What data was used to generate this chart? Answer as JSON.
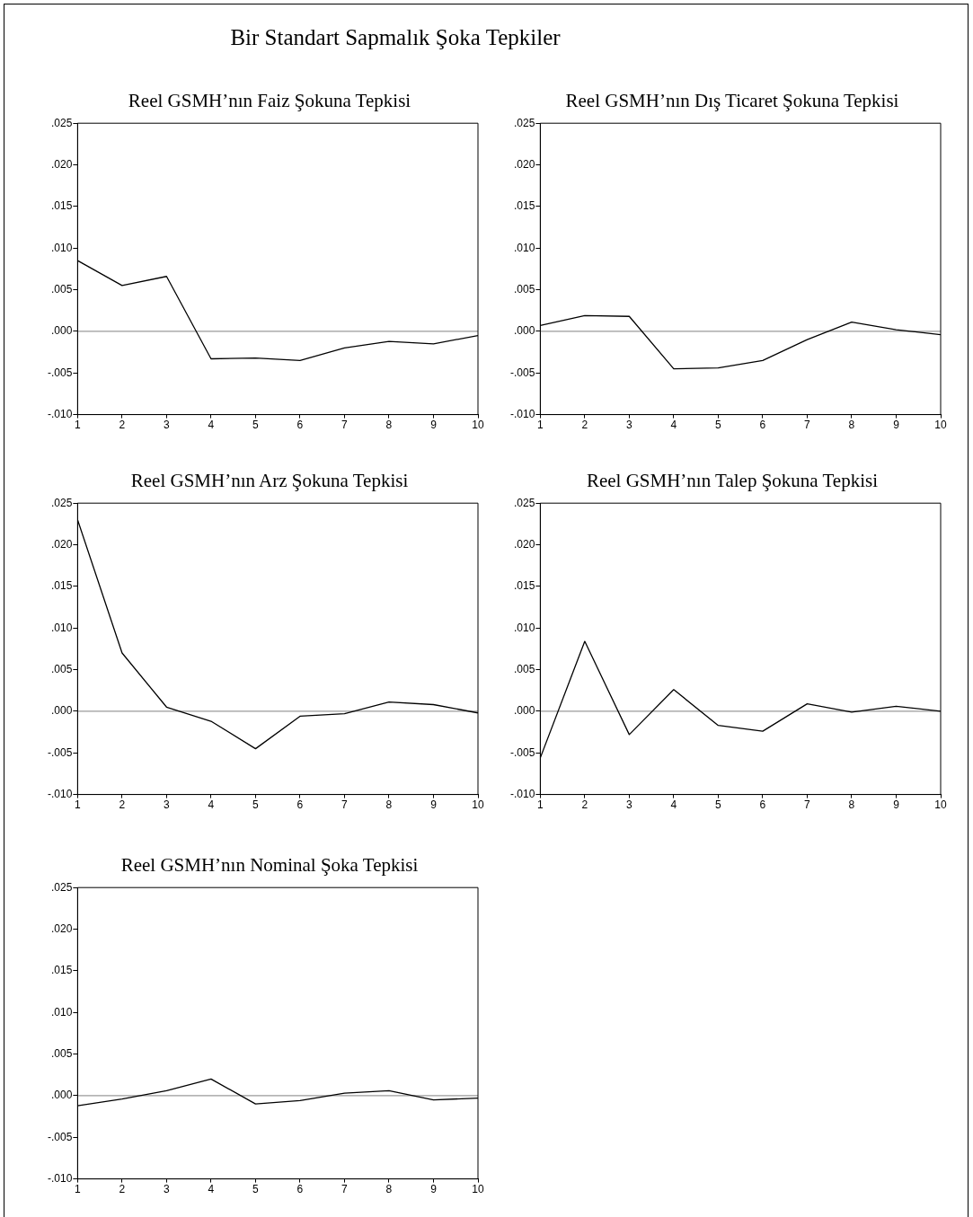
{
  "chart_data": [
    {
      "type": "other",
      "title": "Bir Standart Sapmalık Şoka Tepkiler"
    },
    {
      "type": "line",
      "title": "Reel GSMH’nın Faiz Şokuna Tepkisi",
      "x": [
        1,
        2,
        3,
        4,
        5,
        6,
        7,
        8,
        9,
        10
      ],
      "color": "#000000",
      "values": [
        0.0085,
        0.0055,
        0.0066,
        -0.0033,
        -0.0032,
        -0.0035,
        -0.002,
        -0.0012,
        -0.0015,
        -0.0005
      ],
      "xlim": [
        1,
        10
      ],
      "xticks": [
        1,
        2,
        3,
        4,
        5,
        6,
        7,
        8,
        9,
        10
      ],
      "ylim": [
        -0.01,
        0.025
      ],
      "yticks": [
        {
          "value": -0.01,
          "label": "-.010"
        },
        {
          "value": -0.005,
          "label": "-.005"
        },
        {
          "value": 0,
          "label": ".000"
        },
        {
          "value": 0.005,
          "label": ".005"
        },
        {
          "value": 0.01,
          "label": ".010"
        },
        {
          "value": 0.015,
          "label": ".015"
        },
        {
          "value": 0.02,
          "label": ".020"
        },
        {
          "value": 0.025,
          "label": ".025"
        }
      ],
      "ref_lines": [
        {
          "axis": "y",
          "value": 0,
          "color": "#808080"
        }
      ]
    },
    {
      "type": "line",
      "title": "Reel GSMH’nın Dış Ticaret Şokuna Tepkisi",
      "x": [
        1,
        2,
        3,
        4,
        5,
        6,
        7,
        8,
        9,
        10
      ],
      "color": "#000000",
      "values": [
        0.0007,
        0.0019,
        0.0018,
        -0.0045,
        -0.0044,
        -0.0035,
        -0.001,
        0.0011,
        0.0002,
        -0.0004
      ],
      "xlim": [
        1,
        10
      ],
      "xticks": [
        1,
        2,
        3,
        4,
        5,
        6,
        7,
        8,
        9,
        10
      ],
      "ylim": [
        -0.01,
        0.025
      ],
      "yticks": [
        {
          "value": -0.01,
          "label": "-.010"
        },
        {
          "value": -0.005,
          "label": "-.005"
        },
        {
          "value": 0,
          "label": ".000"
        },
        {
          "value": 0.005,
          "label": ".005"
        },
        {
          "value": 0.01,
          "label": ".010"
        },
        {
          "value": 0.015,
          "label": ".015"
        },
        {
          "value": 0.02,
          "label": ".020"
        },
        {
          "value": 0.025,
          "label": ".025"
        }
      ],
      "ref_lines": [
        {
          "axis": "y",
          "value": 0,
          "color": "#808080"
        }
      ]
    },
    {
      "type": "line",
      "title": "Reel GSMH’nın Arz Şokuna Tepkisi",
      "x": [
        1,
        2,
        3,
        4,
        5,
        6,
        7,
        8,
        9,
        10
      ],
      "color": "#000000",
      "values": [
        0.023,
        0.007,
        0.0005,
        -0.0012,
        -0.0045,
        -0.0006,
        -0.0003,
        0.0011,
        0.0008,
        -0.0002
      ],
      "xlim": [
        1,
        10
      ],
      "xticks": [
        1,
        2,
        3,
        4,
        5,
        6,
        7,
        8,
        9,
        10
      ],
      "ylim": [
        -0.01,
        0.025
      ],
      "yticks": [
        {
          "value": -0.01,
          "label": "-.010"
        },
        {
          "value": -0.005,
          "label": "-.005"
        },
        {
          "value": 0,
          "label": ".000"
        },
        {
          "value": 0.005,
          "label": ".005"
        },
        {
          "value": 0.01,
          "label": ".010"
        },
        {
          "value": 0.015,
          "label": ".015"
        },
        {
          "value": 0.02,
          "label": ".020"
        },
        {
          "value": 0.025,
          "label": ".025"
        }
      ],
      "ref_lines": [
        {
          "axis": "y",
          "value": 0,
          "color": "#808080"
        }
      ]
    },
    {
      "type": "line",
      "title": "Reel GSMH’nın Talep Şokuna Tepkisi",
      "x": [
        1,
        2,
        3,
        4,
        5,
        6,
        7,
        8,
        9,
        10
      ],
      "color": "#000000",
      "values": [
        -0.0056,
        0.0084,
        -0.0028,
        0.0026,
        -0.0017,
        -0.0024,
        0.0009,
        -0.0001,
        0.0006,
        0.0
      ],
      "xlim": [
        1,
        10
      ],
      "xticks": [
        1,
        2,
        3,
        4,
        5,
        6,
        7,
        8,
        9,
        10
      ],
      "ylim": [
        -0.01,
        0.025
      ],
      "yticks": [
        {
          "value": -0.01,
          "label": "-.010"
        },
        {
          "value": -0.005,
          "label": "-.005"
        },
        {
          "value": 0,
          "label": ".000"
        },
        {
          "value": 0.005,
          "label": ".005"
        },
        {
          "value": 0.01,
          "label": ".010"
        },
        {
          "value": 0.015,
          "label": ".015"
        },
        {
          "value": 0.02,
          "label": ".020"
        },
        {
          "value": 0.025,
          "label": ".025"
        }
      ],
      "ref_lines": [
        {
          "axis": "y",
          "value": 0,
          "color": "#808080"
        }
      ]
    },
    {
      "type": "line",
      "title": "Reel GSMH’nın Nominal Şoka Tepkisi",
      "x": [
        1,
        2,
        3,
        4,
        5,
        6,
        7,
        8,
        9,
        10
      ],
      "color": "#000000",
      "values": [
        -0.0012,
        -0.0004,
        0.0006,
        0.002,
        -0.001,
        -0.0006,
        0.0003,
        0.0006,
        -0.0005,
        -0.0003
      ],
      "xlim": [
        1,
        10
      ],
      "xticks": [
        1,
        2,
        3,
        4,
        5,
        6,
        7,
        8,
        9,
        10
      ],
      "ylim": [
        -0.01,
        0.025
      ],
      "yticks": [
        {
          "value": -0.01,
          "label": "-.010"
        },
        {
          "value": -0.005,
          "label": "-.005"
        },
        {
          "value": 0,
          "label": ".000"
        },
        {
          "value": 0.005,
          "label": ".005"
        },
        {
          "value": 0.01,
          "label": ".010"
        },
        {
          "value": 0.015,
          "label": ".015"
        },
        {
          "value": 0.02,
          "label": ".020"
        },
        {
          "value": 0.025,
          "label": ".025"
        }
      ],
      "ref_lines": [
        {
          "axis": "y",
          "value": 0,
          "color": "#808080"
        }
      ]
    }
  ]
}
